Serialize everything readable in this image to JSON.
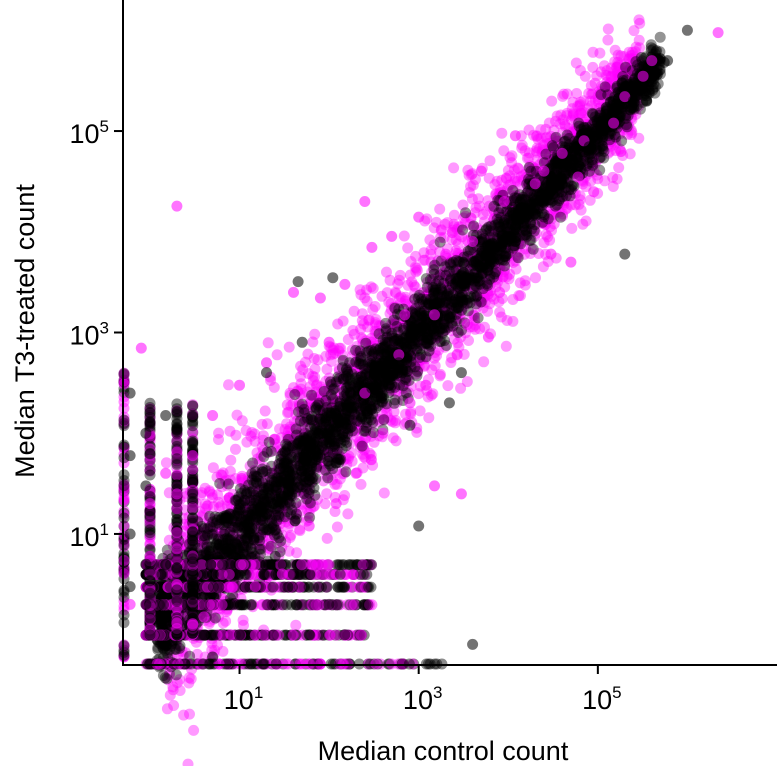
{
  "chart_data": {
    "type": "scatter",
    "title": "",
    "xlabel": "Median control count",
    "ylabel": "Median T3-treated count",
    "xscale": "log",
    "yscale": "log",
    "xlim": [
      0.5,
      10000000
    ],
    "ylim": [
      0.5,
      2000000
    ],
    "x_ticks": [
      {
        "value": 10,
        "base": "10",
        "exp": "1"
      },
      {
        "value": 1000,
        "base": "10",
        "exp": "3"
      },
      {
        "value": 100000,
        "base": "10",
        "exp": "5"
      }
    ],
    "y_ticks": [
      {
        "value": 10,
        "base": "10",
        "exp": "1"
      },
      {
        "value": 1000,
        "base": "10",
        "exp": "3"
      },
      {
        "value": 100000,
        "base": "10",
        "exp": "5"
      }
    ],
    "grid": false,
    "legend": "none",
    "series": [
      {
        "color": "#ff00ff",
        "opacity": 0.45,
        "points": [
          [
            2200000,
            950000
          ],
          [
            320000,
            350000
          ],
          [
            90000,
            25000
          ],
          [
            150000,
            120000
          ],
          [
            40000,
            60000
          ],
          [
            200000,
            220000
          ],
          [
            60000,
            35000
          ],
          [
            1000,
            14000
          ],
          [
            500,
            9000
          ],
          [
            250,
            20000
          ],
          [
            5000,
            40000
          ],
          [
            12000,
            90000
          ],
          [
            30000,
            6000
          ],
          [
            8000,
            2500
          ],
          [
            50000,
            5000
          ],
          [
            2,
            18000
          ],
          [
            0.8,
            700
          ],
          [
            3000,
            25
          ],
          [
            1500,
            30
          ],
          [
            80,
            2200
          ],
          [
            40,
            2500
          ],
          [
            100,
            800
          ],
          [
            20,
            500
          ],
          [
            10,
            300
          ],
          [
            5,
            150
          ],
          [
            3,
            60
          ],
          [
            2,
            25
          ],
          [
            1.5,
            40
          ],
          [
            1,
            20
          ],
          [
            1,
            6
          ],
          [
            0.6,
            2
          ],
          [
            300,
            7000
          ],
          [
            150,
            3000
          ],
          [
            700,
            1500
          ],
          [
            2000,
            6000
          ],
          [
            4000,
            8000
          ],
          [
            20000,
            30000
          ],
          [
            800,
            200
          ],
          [
            400,
            100
          ],
          [
            200,
            40
          ],
          [
            120,
            20
          ],
          [
            60,
            12
          ],
          [
            30,
            4
          ],
          [
            15,
            3
          ],
          [
            8,
            1
          ],
          [
            4,
            1.5
          ],
          [
            6000,
            900
          ],
          [
            1200,
            300
          ],
          [
            3500,
            1200
          ],
          [
            9000,
            20000
          ],
          [
            25000,
            40000
          ],
          [
            70000,
            80000
          ],
          [
            400000,
            500000
          ],
          [
            1500,
            1500
          ],
          [
            600,
            600
          ],
          [
            250,
            250
          ]
        ]
      },
      {
        "color": "#000000",
        "opacity": 0.45,
        "points": [
          [
            1000000,
            1000000
          ],
          [
            550000,
            480000
          ],
          [
            420000,
            330000
          ],
          [
            250000,
            200000
          ],
          [
            150000,
            160000
          ],
          [
            80000,
            70000
          ],
          [
            40000,
            30000
          ],
          [
            20000,
            15000
          ],
          [
            10000,
            9000
          ],
          [
            5000,
            4500
          ],
          [
            2500,
            2000
          ],
          [
            1200,
            1100
          ],
          [
            600,
            500
          ],
          [
            300,
            280
          ],
          [
            150,
            140
          ],
          [
            70,
            60
          ],
          [
            35,
            30
          ],
          [
            18,
            15
          ],
          [
            9,
            8
          ],
          [
            5,
            4
          ],
          [
            3,
            2.5
          ],
          [
            110,
            3500
          ],
          [
            45,
            3200
          ],
          [
            0.9,
            100
          ],
          [
            0.9,
            30
          ],
          [
            0.9,
            5
          ],
          [
            0.9,
            2
          ],
          [
            1,
            1
          ],
          [
            2,
            1
          ],
          [
            5,
            0.6
          ],
          [
            10,
            1
          ],
          [
            2200,
            200
          ],
          [
            4000,
            0.8
          ],
          [
            400,
            300
          ],
          [
            30000,
            25000
          ],
          [
            200000,
            6000
          ],
          [
            1000,
            12
          ],
          [
            100,
            2
          ],
          [
            3000,
            400
          ],
          [
            600000,
            500000
          ],
          [
            350000,
            200000
          ],
          [
            12000,
            8000
          ],
          [
            7000,
            6000
          ],
          [
            50,
            800
          ],
          [
            20,
            400
          ],
          [
            3,
            80
          ],
          [
            1.5,
            150
          ],
          [
            0.6,
            250
          ],
          [
            0.6,
            60
          ],
          [
            0.6,
            10
          ],
          [
            0.6,
            3
          ],
          [
            60,
            1
          ],
          [
            150,
            1
          ],
          [
            25,
            6
          ],
          [
            12,
            25
          ],
          [
            800,
            120
          ]
        ]
      }
    ]
  }
}
